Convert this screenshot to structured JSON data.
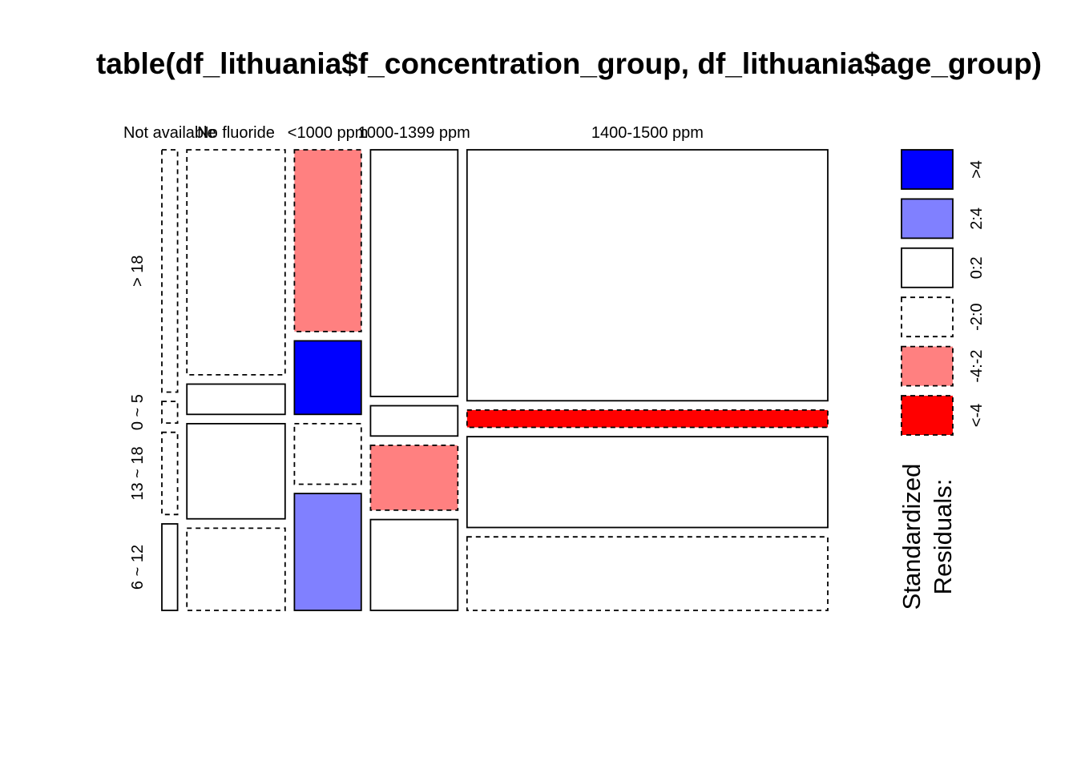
{
  "chart_data": {
    "type": "mosaic",
    "title": "table(df_lithuania$f_concentration_group, df_lithuania$age_group)",
    "columns": [
      "Not available",
      "No fluoride",
      "<1000 ppm",
      "1000-1399 ppm",
      "1400-1500 ppm"
    ],
    "rows": [
      "> 18",
      "0 ~ 5",
      "13 ~ 18",
      "6 ~ 12"
    ],
    "column_shares": [
      0.02,
      0.125,
      0.085,
      0.111,
      0.459
    ],
    "row_shares_by_column": [
      [
        0.56,
        0.05,
        0.19,
        0.2
      ],
      [
        0.52,
        0.07,
        0.22,
        0.19
      ],
      [
        0.42,
        0.17,
        0.14,
        0.27
      ],
      [
        0.57,
        0.07,
        0.15,
        0.21
      ],
      [
        0.58,
        0.04,
        0.21,
        0.17
      ]
    ],
    "residual_class_by_column": [
      [
        "-2:0",
        "-2:0",
        "-2:0",
        "0:2"
      ],
      [
        "-2:0",
        "0:2",
        "0:2",
        "-2:0"
      ],
      [
        "-4:-2",
        ">4",
        "-2:0",
        "2:4"
      ],
      [
        "0:2",
        "0:2",
        "-4:-2",
        "0:2"
      ],
      [
        "0:2",
        "<-4",
        "0:2",
        "-2:0"
      ]
    ],
    "legend": {
      "title_lines": [
        "Standardized",
        "Residuals:"
      ],
      "entries": [
        {
          "label": ">4",
          "color": "#0000FF",
          "dashed": false
        },
        {
          "label": "2:4",
          "color": "#8080FF",
          "dashed": false
        },
        {
          "label": "0:2",
          "color": "#FFFFFF",
          "dashed": false
        },
        {
          "label": "-2:0",
          "color": "#FFFFFF",
          "dashed": true
        },
        {
          "label": "-4:-2",
          "color": "#FF8080",
          "dashed": true
        },
        {
          "label": "<-4",
          "color": "#FF0000",
          "dashed": true
        }
      ]
    }
  }
}
